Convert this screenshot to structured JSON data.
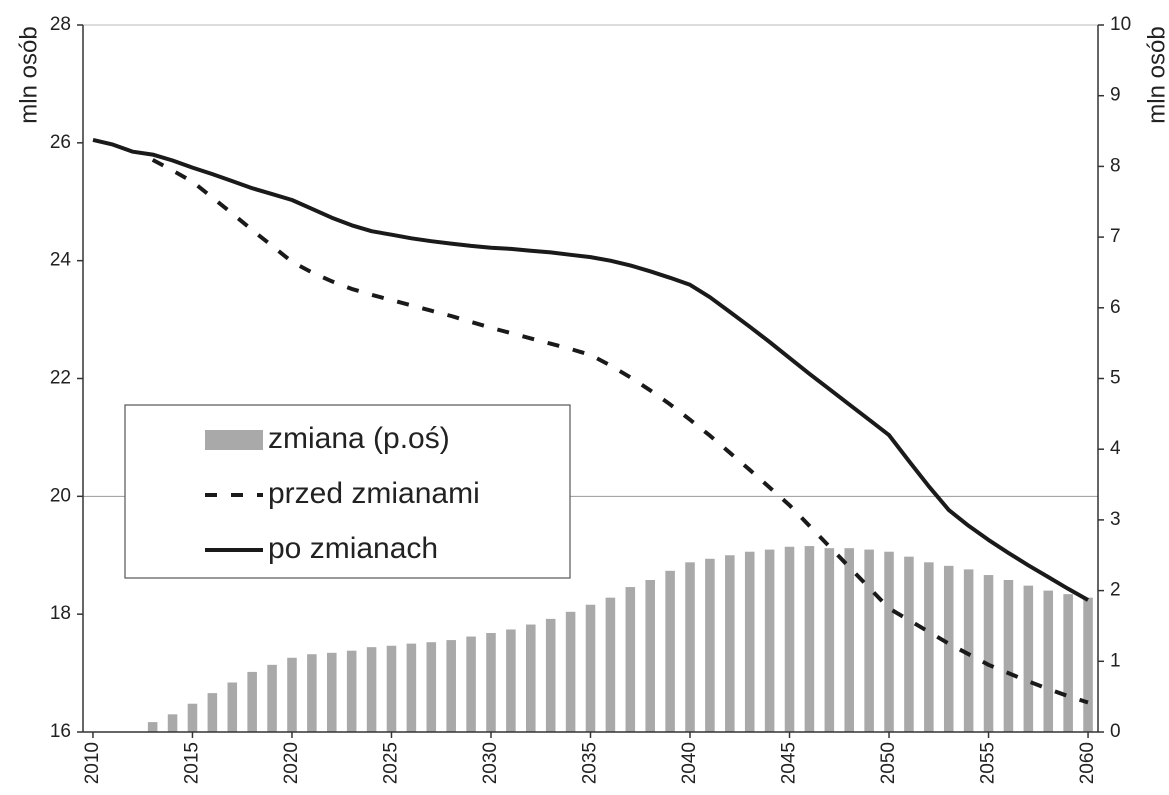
{
  "chart_data": {
    "type": "combo",
    "y_label": "mln osób",
    "y2_label": "mln osób",
    "x": [
      2010,
      2011,
      2012,
      2013,
      2014,
      2015,
      2016,
      2017,
      2018,
      2019,
      2020,
      2021,
      2022,
      2023,
      2024,
      2025,
      2026,
      2027,
      2028,
      2029,
      2030,
      2031,
      2032,
      2033,
      2034,
      2035,
      2036,
      2037,
      2038,
      2039,
      2040,
      2041,
      2042,
      2043,
      2044,
      2045,
      2046,
      2047,
      2048,
      2049,
      2050,
      2051,
      2052,
      2053,
      2054,
      2055,
      2056,
      2057,
      2058,
      2059,
      2060
    ],
    "xlim": [
      2009.5,
      2060.5
    ],
    "xticks": [
      2010,
      2015,
      2020,
      2025,
      2030,
      2035,
      2040,
      2045,
      2050,
      2055,
      2060
    ],
    "ylim": [
      16,
      28
    ],
    "yticks": [
      16,
      18,
      20,
      22,
      24,
      26,
      28
    ],
    "y2lim": [
      0,
      10
    ],
    "y2ticks": [
      0,
      1,
      2,
      3,
      4,
      5,
      6,
      7,
      8,
      9,
      10
    ],
    "hlines": [
      20
    ],
    "legend": "left",
    "series": [
      {
        "name": "zmiana (p.oś)",
        "type": "bar",
        "axis": "y2",
        "color": "#a9a9a9",
        "values": [
          0,
          0,
          0,
          0.14,
          0.25,
          0.4,
          0.55,
          0.7,
          0.85,
          0.95,
          1.05,
          1.1,
          1.12,
          1.15,
          1.2,
          1.22,
          1.25,
          1.27,
          1.3,
          1.35,
          1.4,
          1.45,
          1.52,
          1.6,
          1.7,
          1.8,
          1.9,
          2.05,
          2.15,
          2.28,
          2.4,
          2.45,
          2.5,
          2.55,
          2.58,
          2.62,
          2.63,
          2.6,
          2.6,
          2.58,
          2.55,
          2.48,
          2.4,
          2.35,
          2.3,
          2.22,
          2.15,
          2.07,
          2.0,
          1.95,
          1.9
        ]
      },
      {
        "name": "przed zmianami",
        "type": "line",
        "dash": true,
        "color": "#1a1a1a",
        "values": [
          null,
          null,
          null,
          25.71,
          25.53,
          25.34,
          25.07,
          24.8,
          24.52,
          24.25,
          23.98,
          23.8,
          23.65,
          23.52,
          23.42,
          23.33,
          23.24,
          23.15,
          23.06,
          22.96,
          22.86,
          22.77,
          22.68,
          22.59,
          22.5,
          22.4,
          22.22,
          22.02,
          21.8,
          21.56,
          21.3,
          21.03,
          20.74,
          20.45,
          20.15,
          19.85,
          19.5,
          19.15,
          18.8,
          18.45,
          18.1,
          17.9,
          17.7,
          17.5,
          17.32,
          17.14,
          17.0,
          16.86,
          16.73,
          16.61,
          16.5
        ]
      },
      {
        "name": "po zmianach",
        "type": "line",
        "dash": false,
        "color": "#1a1a1a",
        "values": [
          26.05,
          25.97,
          25.85,
          25.8,
          25.7,
          25.58,
          25.47,
          25.35,
          25.23,
          25.13,
          25.03,
          24.88,
          24.73,
          24.6,
          24.5,
          24.44,
          24.38,
          24.33,
          24.29,
          24.25,
          24.22,
          24.2,
          24.17,
          24.14,
          24.1,
          24.06,
          24.0,
          23.92,
          23.82,
          23.71,
          23.59,
          23.38,
          23.13,
          22.88,
          22.62,
          22.35,
          22.08,
          21.82,
          21.56,
          21.3,
          21.04,
          20.6,
          20.17,
          19.77,
          19.5,
          19.26,
          19.04,
          18.83,
          18.63,
          18.43,
          18.24
        ]
      }
    ]
  }
}
